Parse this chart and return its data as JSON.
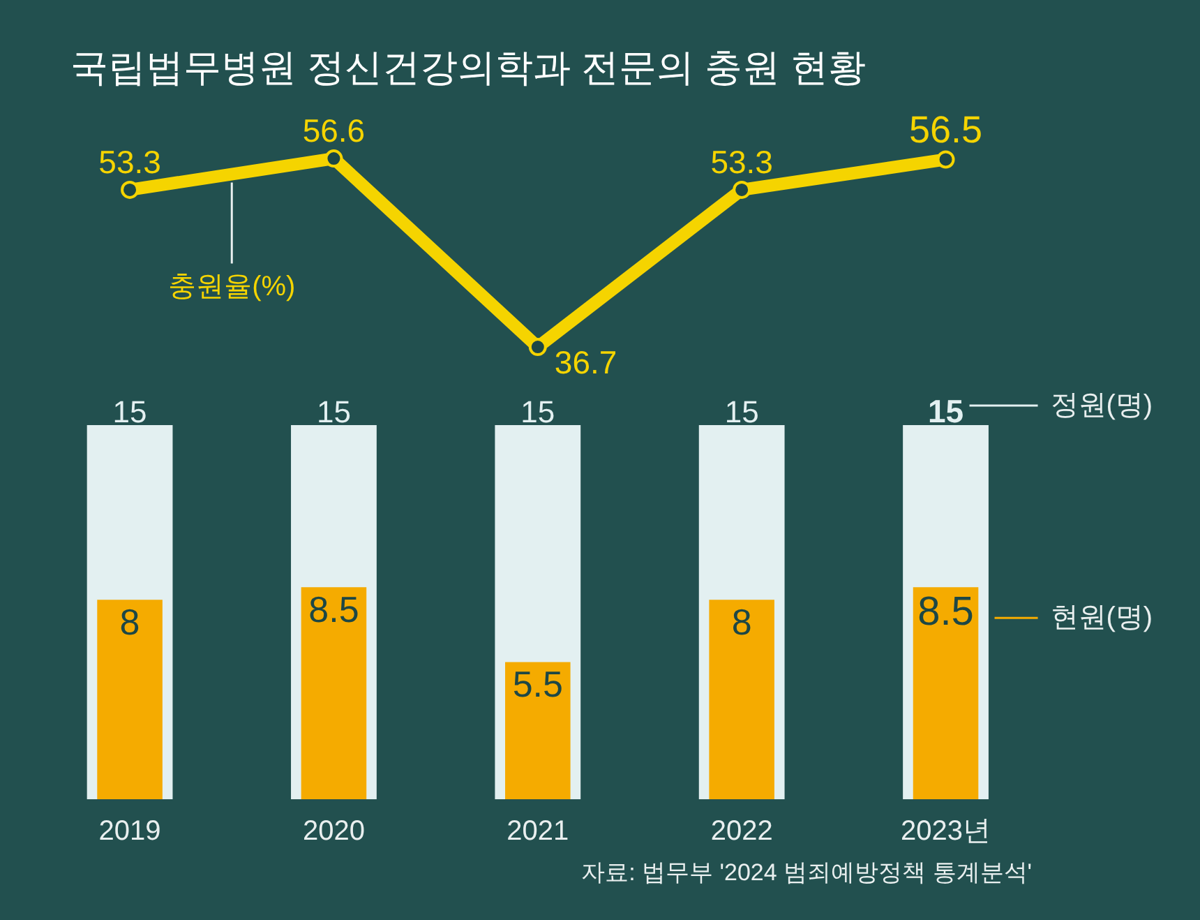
{
  "chart_data": [
    {
      "type": "line",
      "title": "국립법무병원 정신건강의학과 전문의 충원 현황",
      "categories": [
        null,
        null,
        null,
        null,
        null
      ],
      "series": [
        {
          "name": "충원율(%)",
          "color": "#f5d400",
          "values": [
            53.3,
            56.6,
            36.7,
            53.3,
            56.5
          ]
        }
      ],
      "data_labels": true,
      "marker": "circle",
      "tick_labels": false
    },
    {
      "type": "bar",
      "categories": [
        "2019",
        "2020",
        "2021",
        "2022",
        "2023년"
      ],
      "series": [
        {
          "name": "정원(명)",
          "color": "#e3f0f1",
          "values": [
            15,
            15,
            15,
            15,
            15
          ]
        },
        {
          "name": "현원(명)",
          "color": "#f5ab00",
          "values": [
            8,
            8.5,
            5.5,
            8,
            8.5
          ]
        }
      ],
      "data_labels": true,
      "legend": "right",
      "tick_labels": "x",
      "annotations": [
        "자료: 법무부 '2024 범죄예방정책 통계분석'"
      ]
    }
  ]
}
